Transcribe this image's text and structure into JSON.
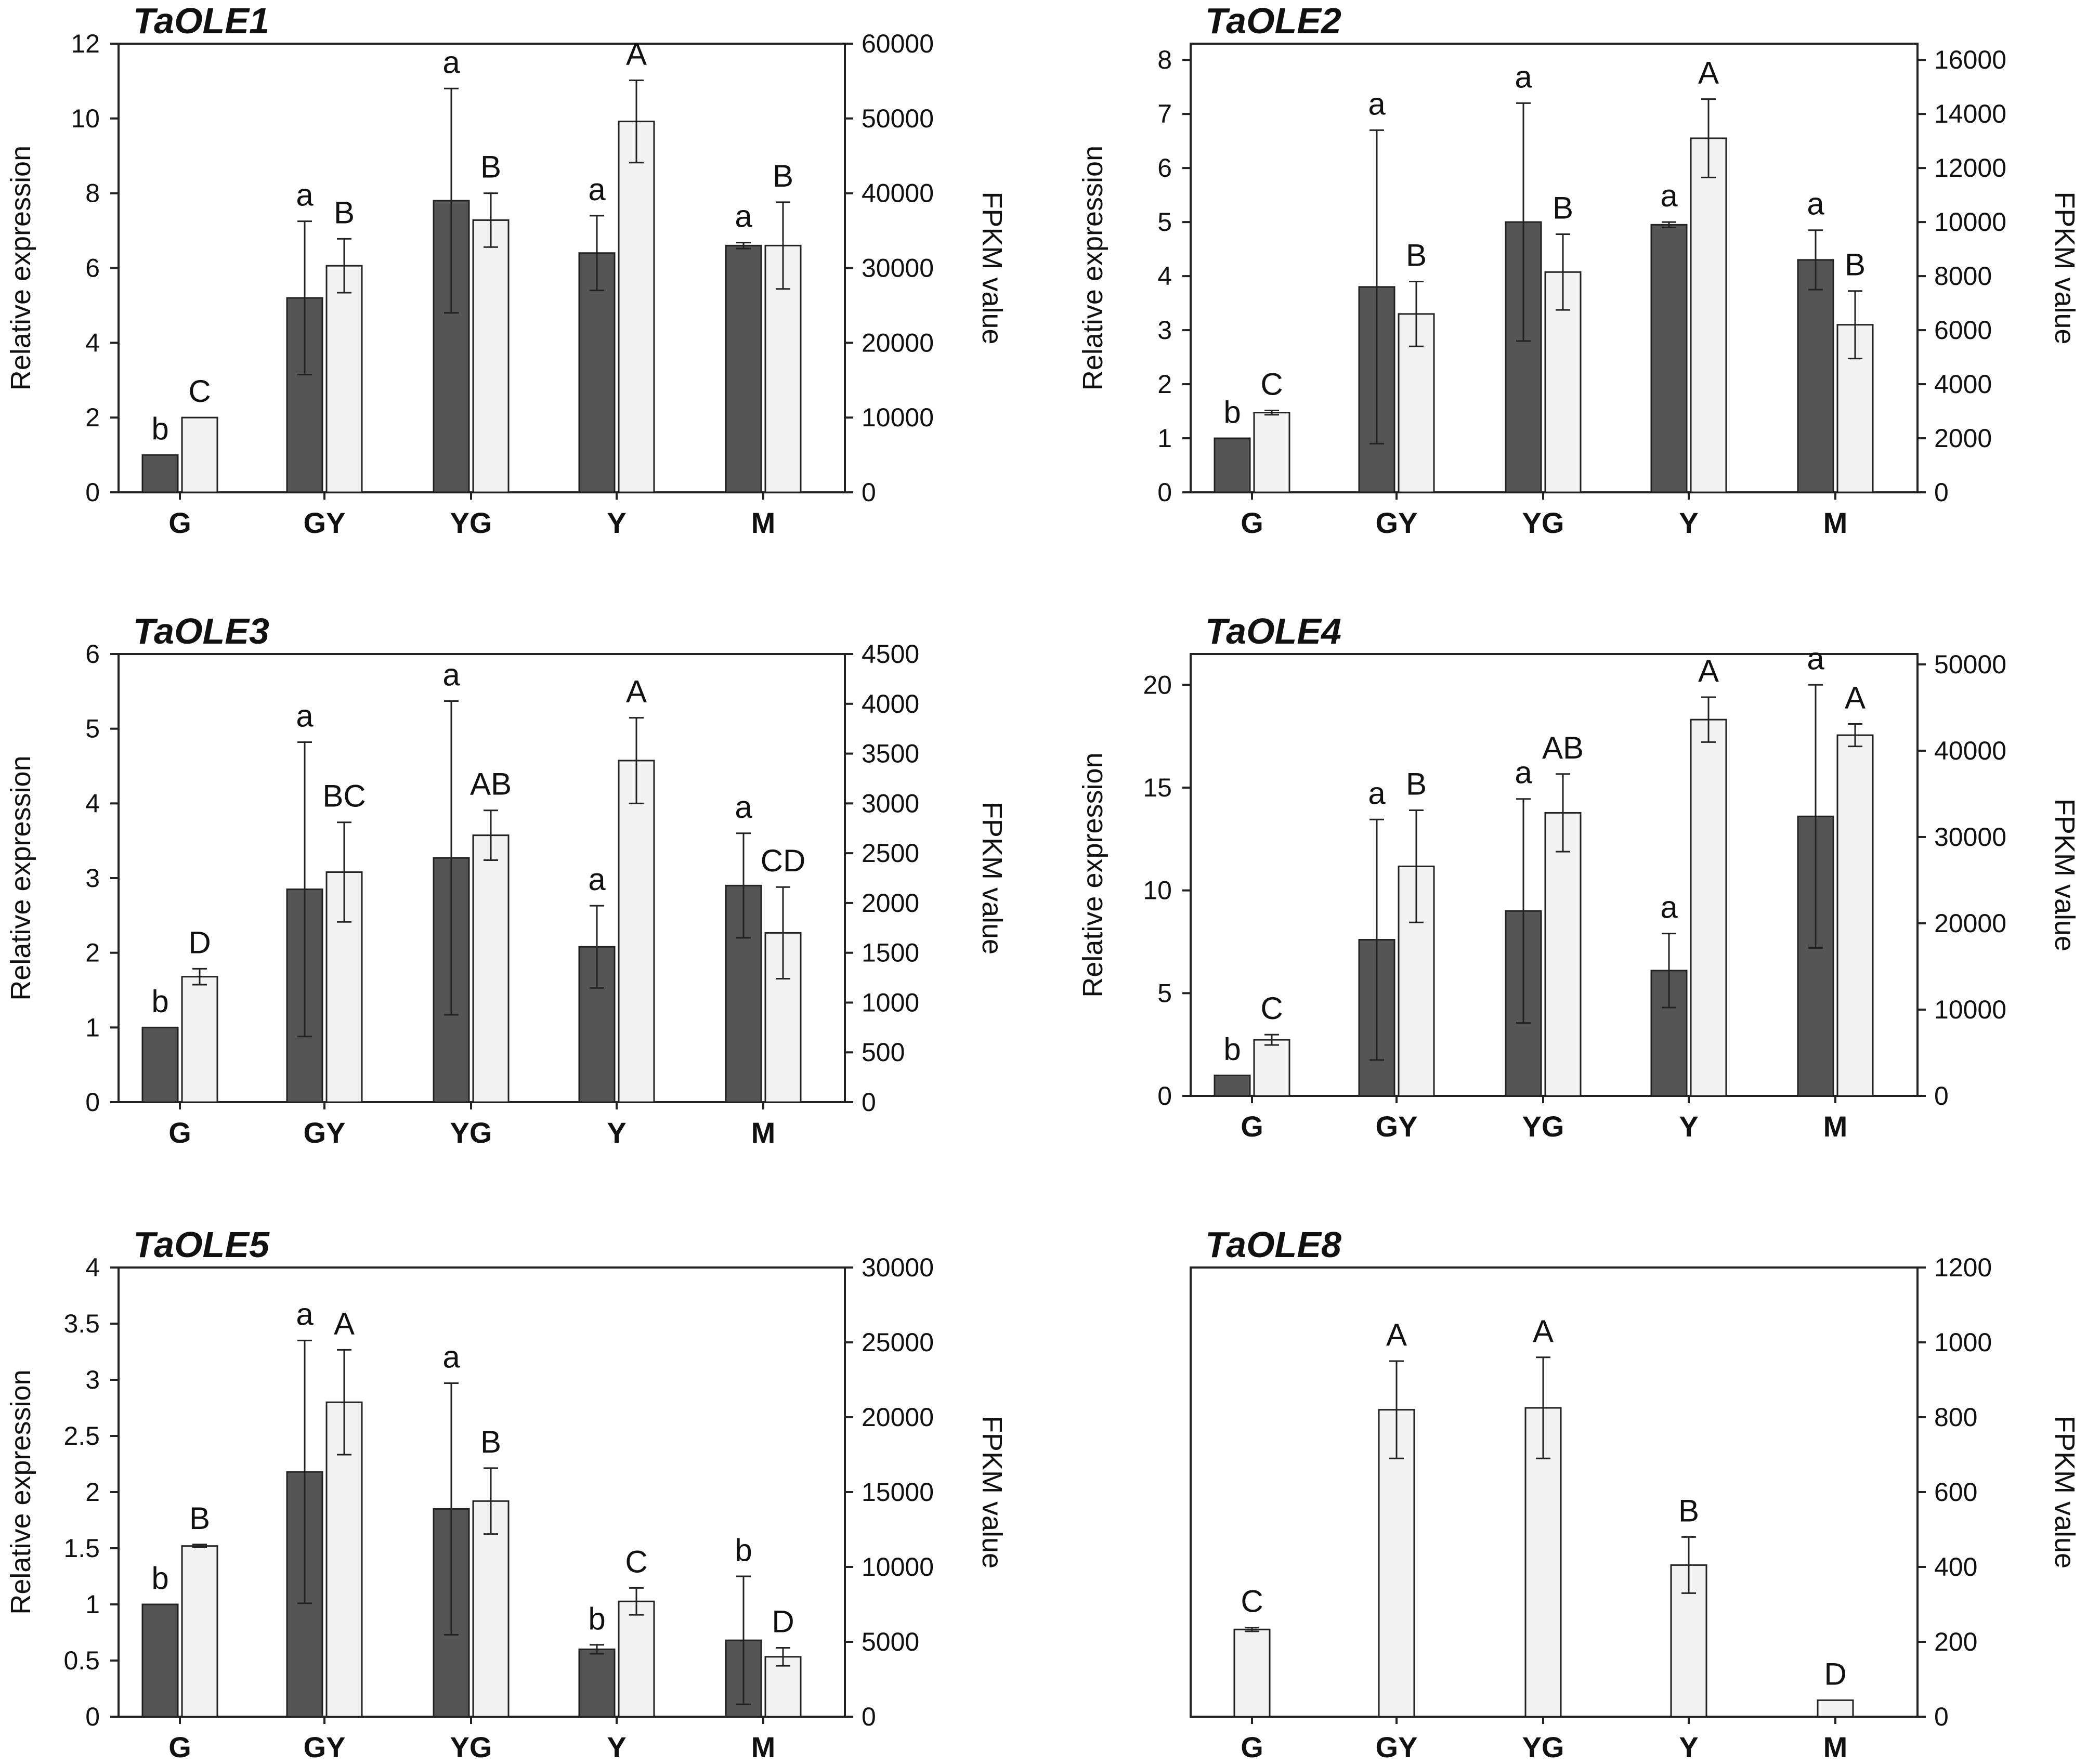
{
  "figure": {
    "categories": [
      "G",
      "GY",
      "YG",
      "Y",
      "M"
    ],
    "left_axis_label": "Relative expression",
    "right_axis_label": "FPKM value"
  },
  "chart_data": [
    {
      "type": "bar",
      "title": "TaOLE1",
      "categories": [
        "G",
        "GY",
        "YG",
        "Y",
        "M"
      ],
      "ylabel": "Relative expression",
      "ylim": [
        0,
        12
      ],
      "yticks": [
        0,
        2,
        4,
        6,
        8,
        10,
        12
      ],
      "y2label": "FPKM value",
      "y2lim": [
        0,
        60000
      ],
      "y2ticks": [
        0,
        10000,
        20000,
        30000,
        40000,
        50000,
        60000
      ],
      "series": [
        {
          "name": "Relative expression",
          "axis": "left",
          "color": "#555555",
          "values": [
            1.0,
            5.2,
            7.8,
            6.4,
            6.6
          ],
          "errors": [
            0,
            2.05,
            3.0,
            1.0,
            0.08
          ],
          "labels": [
            "b",
            "a",
            "a",
            "a",
            "a"
          ]
        },
        {
          "name": "FPKM value",
          "axis": "right",
          "color": "#f2f2f2",
          "values": [
            10000,
            30300,
            36400,
            49600,
            33000
          ],
          "errors": [
            0,
            3600,
            3600,
            5500,
            5800
          ],
          "labels": [
            "C",
            "B",
            "B",
            "A",
            "B"
          ]
        }
      ]
    },
    {
      "type": "bar",
      "title": "TaOLE2",
      "categories": [
        "G",
        "GY",
        "YG",
        "Y",
        "M"
      ],
      "ylabel": "Relative expression",
      "ylim": [
        0,
        8.3
      ],
      "yticks": [
        0,
        1,
        2,
        3,
        4,
        5,
        6,
        7,
        8
      ],
      "y2label": "FPKM value",
      "y2lim": [
        0,
        16600
      ],
      "y2ticks": [
        0,
        2000,
        4000,
        6000,
        8000,
        10000,
        12000,
        14000,
        16000
      ],
      "series": [
        {
          "name": "Relative expression",
          "axis": "left",
          "color": "#555555",
          "values": [
            1.0,
            3.8,
            5.0,
            4.95,
            4.3
          ],
          "errors": [
            0,
            2.9,
            2.2,
            0.05,
            0.55
          ],
          "labels": [
            "b",
            "a",
            "a",
            "a",
            "a"
          ]
        },
        {
          "name": "FPKM value",
          "axis": "right",
          "color": "#f2f2f2",
          "values": [
            2950,
            6600,
            8150,
            13100,
            6200
          ],
          "errors": [
            80,
            1200,
            1400,
            1450,
            1250
          ],
          "labels": [
            "C",
            "B",
            "B",
            "A",
            "B"
          ]
        }
      ]
    },
    {
      "type": "bar",
      "title": "TaOLE3",
      "categories": [
        "G",
        "GY",
        "YG",
        "Y",
        "M"
      ],
      "ylabel": "Relative expression",
      "ylim": [
        0,
        6
      ],
      "yticks": [
        0,
        1,
        2,
        3,
        4,
        5,
        6
      ],
      "y2label": "FPKM value",
      "y2lim": [
        0,
        4500
      ],
      "y2ticks": [
        0,
        500,
        1000,
        1500,
        2000,
        2500,
        3000,
        3500,
        4000,
        4500
      ],
      "series": [
        {
          "name": "Relative expression",
          "axis": "left",
          "color": "#555555",
          "values": [
            1.0,
            2.85,
            3.27,
            2.08,
            2.9
          ],
          "errors": [
            0,
            1.97,
            2.1,
            0.55,
            0.7
          ],
          "labels": [
            "b",
            "a",
            "a",
            "a",
            "a"
          ]
        },
        {
          "name": "FPKM value",
          "axis": "right",
          "color": "#f2f2f2",
          "values": [
            1260,
            2310,
            2680,
            3430,
            1700
          ],
          "errors": [
            80,
            500,
            250,
            430,
            460
          ],
          "labels": [
            "D",
            "BC",
            "AB",
            "A",
            "CD"
          ]
        }
      ]
    },
    {
      "type": "bar",
      "title": "TaOLE4",
      "categories": [
        "G",
        "GY",
        "YG",
        "Y",
        "M"
      ],
      "ylabel": "Relative expression",
      "ylim": [
        0,
        21.5
      ],
      "yticks": [
        0,
        5,
        10,
        15,
        20
      ],
      "y2label": "FPKM value",
      "y2lim": [
        0,
        51200
      ],
      "y2ticks": [
        0,
        10000,
        20000,
        30000,
        40000,
        50000
      ],
      "series": [
        {
          "name": "Relative expression",
          "axis": "left",
          "color": "#555555",
          "values": [
            1.0,
            7.6,
            9.0,
            6.1,
            13.6
          ],
          "errors": [
            0,
            5.85,
            5.45,
            1.8,
            6.4
          ],
          "labels": [
            "b",
            "a",
            "a",
            "a",
            "a"
          ]
        },
        {
          "name": "FPKM value",
          "axis": "right",
          "color": "#f2f2f2",
          "values": [
            6500,
            26600,
            32800,
            43600,
            41800
          ],
          "errors": [
            600,
            6500,
            4500,
            2600,
            1300
          ],
          "labels": [
            "C",
            "B",
            "AB",
            "A",
            "A"
          ]
        }
      ]
    },
    {
      "type": "bar",
      "title": "TaOLE5",
      "categories": [
        "G",
        "GY",
        "YG",
        "Y",
        "M"
      ],
      "ylabel": "Relative expression",
      "ylim": [
        0,
        4
      ],
      "yticks": [
        0,
        0.5,
        1,
        1.5,
        2,
        2.5,
        3,
        3.5,
        4
      ],
      "y2label": "FPKM value",
      "y2lim": [
        0,
        30000
      ],
      "y2ticks": [
        0,
        5000,
        10000,
        15000,
        20000,
        25000,
        30000
      ],
      "series": [
        {
          "name": "Relative expression",
          "axis": "left",
          "color": "#555555",
          "values": [
            1.0,
            2.18,
            1.85,
            0.6,
            0.68
          ],
          "errors": [
            0,
            1.17,
            1.12,
            0.04,
            0.57
          ],
          "labels": [
            "b",
            "a",
            "a",
            "b",
            "b"
          ]
        },
        {
          "name": "FPKM value",
          "axis": "right",
          "color": "#f2f2f2",
          "values": [
            11400,
            21000,
            14400,
            7700,
            4000
          ],
          "errors": [
            100,
            3500,
            2200,
            900,
            600
          ],
          "labels": [
            "B",
            "A",
            "B",
            "C",
            "D"
          ]
        }
      ]
    },
    {
      "type": "bar",
      "title": "TaOLE8",
      "categories": [
        "G",
        "GY",
        "YG",
        "Y",
        "M"
      ],
      "ylabel": "",
      "ylim": null,
      "yticks": [],
      "y2label": "FPKM value",
      "y2lim": [
        0,
        1200
      ],
      "y2ticks": [
        0,
        200,
        400,
        600,
        800,
        1000,
        1200
      ],
      "series": [
        {
          "name": "FPKM value",
          "axis": "right",
          "color": "#f2f2f2",
          "values": [
            233,
            820,
            825,
            405,
            44
          ],
          "errors": [
            5,
            130,
            135,
            75,
            0
          ],
          "labels": [
            "C",
            "A",
            "A",
            "B",
            "D"
          ]
        }
      ]
    }
  ]
}
